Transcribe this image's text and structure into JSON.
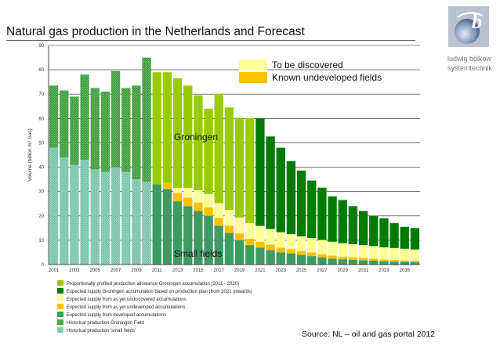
{
  "slide": {
    "title": "Natural gas production in the Netherlands and Forecast",
    "source": "Source: NL – oil and gas portal 2012"
  },
  "logo": {
    "mark": "b",
    "line1": "ludwig bölkow",
    "line2": "systemtechnik"
  },
  "chart_data": {
    "type": "bar",
    "stacked": true,
    "ylabel": "Volume (billion m³ Gas)",
    "ylim": [
      0,
      90
    ],
    "yticks": [
      0,
      10,
      20,
      30,
      40,
      50,
      60,
      70,
      80,
      90
    ],
    "grid": true,
    "categories": [
      2001,
      2002,
      2003,
      2004,
      2005,
      2006,
      2007,
      2008,
      2009,
      2010,
      2011,
      2012,
      2013,
      2014,
      2015,
      2016,
      2017,
      2018,
      2019,
      2020,
      2021,
      2022,
      2023,
      2024,
      2025,
      2026,
      2027,
      2028,
      2029,
      2030,
      2031,
      2032,
      2033,
      2034,
      2035,
      2036
    ],
    "x_tick_labels": [
      "2001",
      "2003",
      "2005",
      "2007",
      "2009",
      "2011",
      "2013",
      "2015",
      "2017",
      "2019",
      "2021",
      "2023",
      "2025",
      "2027",
      "2029",
      "2031",
      "2033",
      "2035"
    ],
    "series": [
      {
        "name": "Historical production 'small fields'",
        "color": "#8fd1bc",
        "pattern": "hist-small",
        "values": [
          48,
          44,
          41,
          43,
          39,
          38,
          40,
          38,
          35,
          34,
          0,
          0,
          0,
          0,
          0,
          0,
          0,
          0,
          0,
          0,
          0,
          0,
          0,
          0,
          0,
          0,
          0,
          0,
          0,
          0,
          0,
          0,
          0,
          0,
          0,
          0
        ]
      },
      {
        "name": "Historical production Groningen Field",
        "color": "#3a9a3a",
        "pattern": "hist-gron",
        "values": [
          25.5,
          27.5,
          28,
          35,
          33.5,
          33,
          39.5,
          34.5,
          38.5,
          51,
          0,
          0,
          0,
          0,
          0,
          0,
          0,
          0,
          0,
          0,
          0,
          0,
          0,
          0,
          0,
          0,
          0,
          0,
          0,
          0,
          0,
          0,
          0,
          0,
          0,
          0
        ]
      },
      {
        "name": "Expected supply from developed accumulations",
        "color": "#3d9b62",
        "values": [
          0,
          0,
          0,
          0,
          0,
          0,
          0,
          0,
          0,
          0,
          33,
          31,
          26,
          24,
          22,
          20,
          16,
          13,
          10,
          8,
          7,
          6,
          5,
          4.5,
          4,
          3.5,
          3,
          2.5,
          2.2,
          2,
          1.8,
          1.6,
          1.4,
          1.2,
          1.1,
          1
        ]
      },
      {
        "name": "Expected supply from as yet undeveloped accumulations",
        "color": "#ffc000",
        "values": [
          0,
          0,
          0,
          0,
          0,
          0,
          0,
          0,
          0,
          0,
          0,
          2.5,
          3.5,
          3.5,
          3.5,
          3.5,
          3.2,
          3,
          2.8,
          2.6,
          2.4,
          2.2,
          2,
          1.8,
          1.6,
          1.5,
          1.3,
          1.2,
          1.1,
          1,
          0.9,
          0.8,
          0.7,
          0.7,
          0.6,
          0.6
        ]
      },
      {
        "name": "Expected supply from as yet undiscovered accumulations",
        "color": "#ffff99",
        "values": [
          0,
          0,
          0,
          0,
          0,
          0,
          0,
          0,
          0,
          0,
          0,
          0,
          2,
          4,
          5,
          5.5,
          6,
          6.5,
          6.5,
          6.5,
          6.5,
          6.4,
          6.3,
          6.2,
          6,
          5.9,
          5.8,
          5.7,
          5.5,
          5.4,
          5.3,
          5.2,
          5,
          4.9,
          4.8,
          4.6
        ]
      },
      {
        "name": "Expected supply Groningen accumulation based on production plan (from 2021 onwards)",
        "color": "#007a00",
        "values": [
          0,
          0,
          0,
          0,
          0,
          0,
          0,
          0,
          0,
          0,
          0,
          0,
          0,
          0,
          0,
          0,
          0,
          0,
          0,
          0,
          44,
          38,
          34.7,
          30,
          27,
          23.6,
          21.5,
          18.6,
          17.7,
          15.6,
          14,
          12.4,
          11.9,
          10.2,
          9,
          8.8
        ]
      },
      {
        "name": "Proportionally profiled production allowance Groningen accumulation (2011 - 2020)",
        "color": "#99cc00",
        "values": [
          0,
          0,
          0,
          0,
          0,
          0,
          0,
          0,
          0,
          0,
          46,
          45.5,
          45,
          42,
          39,
          35,
          45,
          42,
          41,
          43,
          0,
          0,
          0,
          0,
          0,
          0,
          0,
          0,
          0,
          0,
          0,
          0,
          0,
          0,
          0,
          0
        ]
      }
    ],
    "annotations": {
      "groningen": "Groningen",
      "small_fields": "Small fields"
    },
    "legend_top": [
      {
        "label": "To be discovered",
        "color": "#ffff99"
      },
      {
        "label": "Known undeveloped fields",
        "color": "#ffc000"
      }
    ],
    "legend_bottom": [
      {
        "label": "Proportionally profiled production allowance Groningen accumulation (2011 - 2020)",
        "color": "#99cc00"
      },
      {
        "label": "Expected supply Groningen accumulation based on production plan (from 2021 onwards)",
        "color": "#007a00"
      },
      {
        "label": "Expected supply from as yet undiscovered accumulations",
        "color": "#ffff99"
      },
      {
        "label": "Expected supply from as yet undeveloped accumulations",
        "color": "#ffc000"
      },
      {
        "label": "Expected supply from developed accumulations",
        "color": "#3d9b62"
      },
      {
        "label": "Historical production Groningen Field",
        "color": "#3a9a3a"
      },
      {
        "label": "Historical production 'small fields'",
        "color": "#8fd1bc"
      }
    ]
  }
}
